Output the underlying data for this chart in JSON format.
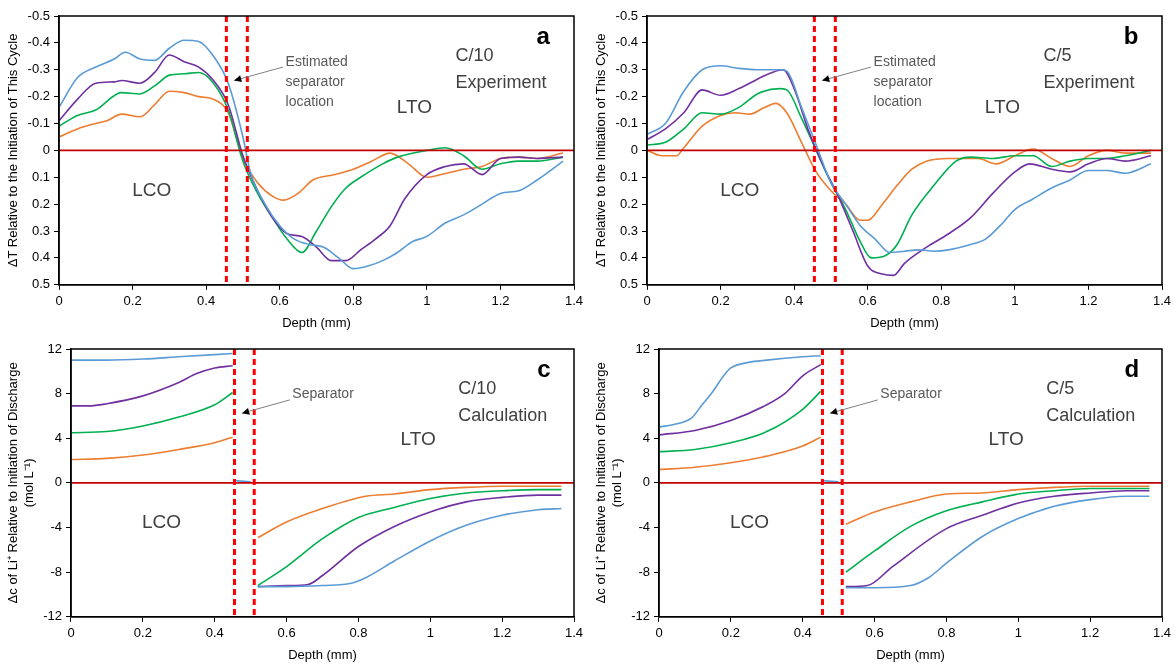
{
  "chart_data": [
    {
      "type": "line",
      "annotations": [
        "a",
        "C/10 Experiment",
        "LTO",
        "LCO",
        "Estimated separator location"
      ],
      "xlabel": "Depth (mm)",
      "ylabel": "ΔT Relative to the Initiation of This Cycle",
      "xlim": [
        0,
        1.4
      ],
      "xticks": [
        0,
        0.2,
        0.4,
        0.6,
        0.8,
        1,
        1.2,
        1.4
      ],
      "ylim": [
        0.5,
        -0.5
      ],
      "yticks": [
        -0.5,
        -0.4,
        -0.3,
        -0.2,
        -0.1,
        0,
        0.1,
        0.2,
        0.3,
        0.4,
        0.5
      ],
      "grid": false,
      "legend": false,
      "marker": "none",
      "ref_lines": [
        {
          "axis": "y",
          "value": 0,
          "color": "#c00000"
        },
        {
          "axis": "x",
          "value": 0.455,
          "color": "#ff0000",
          "line_style": "dashed"
        },
        {
          "axis": "x",
          "value": 0.512,
          "color": "#ff0000",
          "line_style": "dashed"
        }
      ],
      "series": [
        {
          "color": "#5b9bd5",
          "x": [
            0,
            0.05,
            0.1,
            0.15,
            0.18,
            0.22,
            0.26,
            0.3,
            0.34,
            0.38,
            0.42,
            0.46,
            0.5,
            0.52,
            0.56,
            0.6,
            0.64,
            0.68,
            0.72,
            0.76,
            0.8,
            0.84,
            0.88,
            0.92,
            0.96,
            1,
            1.05,
            1.1,
            1.15,
            1.2,
            1.25,
            1.3,
            1.37
          ],
          "values": [
            -0.16,
            -0.27,
            -0.31,
            -0.34,
            -0.365,
            -0.34,
            -0.335,
            -0.38,
            -0.41,
            -0.405,
            -0.35,
            -0.25,
            -0.05,
            0.08,
            0.2,
            0.28,
            0.33,
            0.35,
            0.36,
            0.4,
            0.44,
            0.43,
            0.41,
            0.38,
            0.34,
            0.32,
            0.27,
            0.24,
            0.2,
            0.16,
            0.15,
            0.11,
            0.04
          ]
        },
        {
          "color": "#7030a0",
          "x": [
            0,
            0.05,
            0.1,
            0.15,
            0.17,
            0.22,
            0.26,
            0.3,
            0.34,
            0.38,
            0.42,
            0.46,
            0.5,
            0.54,
            0.58,
            0.62,
            0.66,
            0.7,
            0.74,
            0.78,
            0.82,
            0.86,
            0.9,
            0.94,
            1,
            1.05,
            1.1,
            1.15,
            1.2,
            1.25,
            1.3,
            1.37
          ],
          "values": [
            -0.11,
            -0.19,
            -0.25,
            -0.255,
            -0.26,
            -0.25,
            -0.29,
            -0.355,
            -0.33,
            -0.31,
            -0.26,
            -0.17,
            0.02,
            0.15,
            0.25,
            0.31,
            0.32,
            0.36,
            0.41,
            0.41,
            0.37,
            0.33,
            0.28,
            0.18,
            0.09,
            0.06,
            0.05,
            0.09,
            0.03,
            0.025,
            0.03,
            0.025
          ]
        },
        {
          "color": "#00b050",
          "x": [
            0,
            0.05,
            0.1,
            0.17,
            0.22,
            0.26,
            0.3,
            0.34,
            0.38,
            0.42,
            0.46,
            0.5,
            0.54,
            0.58,
            0.62,
            0.66,
            0.7,
            0.74,
            0.78,
            0.82,
            0.88,
            0.92,
            1,
            1.05,
            1.1,
            1.15,
            1.2,
            1.25,
            1.3,
            1.37
          ],
          "values": [
            -0.09,
            -0.13,
            -0.15,
            -0.215,
            -0.21,
            -0.24,
            -0.28,
            -0.285,
            -0.29,
            -0.25,
            -0.15,
            0.04,
            0.16,
            0.25,
            0.33,
            0.38,
            0.3,
            0.21,
            0.14,
            0.1,
            0.05,
            0.025,
            0,
            -0.01,
            0.02,
            0.07,
            0.05,
            0.04,
            0.04,
            0.025
          ]
        },
        {
          "color": "#ed7d31",
          "x": [
            0,
            0.05,
            0.1,
            0.13,
            0.17,
            0.22,
            0.26,
            0.3,
            0.34,
            0.38,
            0.42,
            0.46,
            0.5,
            0.54,
            0.58,
            0.61,
            0.65,
            0.69,
            0.75,
            0.8,
            0.85,
            0.9,
            0.95,
            1,
            1.04,
            1.1,
            1.15,
            1.2,
            1.25,
            1.3,
            1.37
          ],
          "values": [
            -0.05,
            -0.08,
            -0.1,
            -0.11,
            -0.135,
            -0.125,
            -0.17,
            -0.22,
            -0.215,
            -0.2,
            -0.19,
            -0.14,
            0.03,
            0.12,
            0.17,
            0.185,
            0.16,
            0.11,
            0.09,
            0.07,
            0.04,
            0.01,
            0.05,
            0.1,
            0.09,
            0.07,
            0.06,
            0.03,
            0.025,
            0.03,
            0.01
          ]
        }
      ]
    },
    {
      "type": "line",
      "annotations": [
        "b",
        "C/5 Experiment",
        "LTO",
        "LCO",
        "Estimated separator location"
      ],
      "xlabel": "Depth (mm)",
      "ylabel": "ΔT Relative to the Initiation of This Cycle",
      "xlim": [
        0,
        1.4
      ],
      "xticks": [
        0,
        0.2,
        0.4,
        0.6,
        0.8,
        1,
        1.2,
        1.4
      ],
      "ylim": [
        0.5,
        -0.5
      ],
      "yticks": [
        -0.5,
        -0.4,
        -0.3,
        -0.2,
        -0.1,
        0,
        0.1,
        0.2,
        0.3,
        0.4,
        0.5
      ],
      "grid": false,
      "legend": false,
      "marker": "none",
      "ref_lines": [
        {
          "axis": "y",
          "value": 0,
          "color": "#c00000"
        },
        {
          "axis": "x",
          "value": 0.455,
          "color": "#ff0000",
          "line_style": "dashed"
        },
        {
          "axis": "x",
          "value": 0.512,
          "color": "#ff0000",
          "line_style": "dashed"
        }
      ],
      "series": [
        {
          "color": "#5b9bd5",
          "x": [
            0,
            0.05,
            0.1,
            0.15,
            0.2,
            0.25,
            0.3,
            0.36,
            0.38,
            0.42,
            0.46,
            0.5,
            0.54,
            0.58,
            0.62,
            0.66,
            0.7,
            0.74,
            0.78,
            0.82,
            0.88,
            0.92,
            0.96,
            1,
            1.05,
            1.1,
            1.15,
            1.2,
            1.25,
            1.3,
            1.37
          ],
          "values": [
            -0.06,
            -0.1,
            -0.22,
            -0.3,
            -0.315,
            -0.305,
            -0.3,
            -0.3,
            -0.295,
            -0.16,
            -0.02,
            0.12,
            0.2,
            0.28,
            0.33,
            0.38,
            0.375,
            0.37,
            0.375,
            0.37,
            0.35,
            0.33,
            0.28,
            0.22,
            0.18,
            0.14,
            0.11,
            0.075,
            0.075,
            0.085,
            0.05
          ]
        },
        {
          "color": "#7030a0",
          "x": [
            0,
            0.05,
            0.1,
            0.15,
            0.2,
            0.25,
            0.3,
            0.34,
            0.37,
            0.4,
            0.44,
            0.48,
            0.52,
            0.56,
            0.6,
            0.64,
            0.67,
            0.7,
            0.76,
            0.82,
            0.88,
            0.94,
            1,
            1.04,
            1.1,
            1.15,
            1.2,
            1.25,
            1.3,
            1.37
          ],
          "values": [
            -0.04,
            -0.08,
            -0.14,
            -0.225,
            -0.205,
            -0.23,
            -0.265,
            -0.29,
            -0.3,
            -0.23,
            -0.07,
            0.06,
            0.17,
            0.3,
            0.43,
            0.46,
            0.465,
            0.42,
            0.36,
            0.31,
            0.25,
            0.16,
            0.08,
            0.05,
            0.07,
            0.08,
            0.05,
            0.03,
            0.04,
            0.02
          ]
        },
        {
          "color": "#00b050",
          "x": [
            0,
            0.05,
            0.1,
            0.15,
            0.2,
            0.25,
            0.3,
            0.36,
            0.38,
            0.42,
            0.46,
            0.5,
            0.54,
            0.58,
            0.61,
            0.65,
            0.68,
            0.72,
            0.78,
            0.84,
            0.88,
            0.94,
            1,
            1.05,
            1.1,
            1.15,
            1.2,
            1.25,
            1.3,
            1.37
          ],
          "values": [
            -0.02,
            -0.03,
            -0.08,
            -0.14,
            -0.135,
            -0.16,
            -0.21,
            -0.23,
            -0.225,
            -0.12,
            0,
            0.12,
            0.22,
            0.34,
            0.4,
            0.39,
            0.35,
            0.24,
            0.13,
            0.04,
            0.025,
            0.03,
            0.02,
            0.02,
            0.06,
            0.04,
            0.03,
            0.03,
            0.02,
            0
          ]
        },
        {
          "color": "#ed7d31",
          "x": [
            0,
            0.04,
            0.08,
            0.1,
            0.15,
            0.2,
            0.24,
            0.28,
            0.32,
            0.35,
            0.38,
            0.42,
            0.46,
            0.5,
            0.54,
            0.58,
            0.6,
            0.64,
            0.68,
            0.72,
            0.76,
            0.82,
            0.9,
            0.95,
            1,
            1.05,
            1.1,
            1.15,
            1.2,
            1.25,
            1.3,
            1.37
          ],
          "values": [
            0,
            0.02,
            0.02,
            -0.01,
            -0.09,
            -0.13,
            -0.14,
            -0.135,
            -0.16,
            -0.175,
            -0.14,
            -0.03,
            0.08,
            0.15,
            0.2,
            0.26,
            0.26,
            0.2,
            0.13,
            0.07,
            0.04,
            0.03,
            0.03,
            0.05,
            0.02,
            -0.005,
            0.03,
            0.06,
            0.02,
            0,
            0.01,
            0.01
          ]
        }
      ]
    },
    {
      "type": "line",
      "annotations": [
        "c",
        "C/10 Calculation",
        "LTO",
        "LCO",
        "Separator"
      ],
      "xlabel": "Depth (mm)",
      "ylabel": "Δc of Li⁺ Relative to Initiation of Discharge (mol L⁻¹)",
      "xlim": [
        0,
        1.4
      ],
      "xticks": [
        0,
        0.2,
        0.4,
        0.6,
        0.8,
        1,
        1.2,
        1.4
      ],
      "ylim": [
        -12,
        12
      ],
      "yticks": [
        -12,
        -8,
        -4,
        0,
        4,
        8,
        12
      ],
      "grid": false,
      "legend": false,
      "marker": "none",
      "ref_lines": [
        {
          "axis": "y",
          "value": 0,
          "color": "#c00000"
        },
        {
          "axis": "x",
          "value": 0.455,
          "color": "#ff0000",
          "line_style": "dashed"
        },
        {
          "axis": "x",
          "value": 0.51,
          "color": "#ff0000",
          "line_style": "dashed"
        }
      ],
      "series": [
        {
          "color": "#5b9bd5",
          "x": [
            0,
            0.1,
            0.2,
            0.3,
            0.4,
            0.45,
            0.485,
            0.52,
            0.6,
            0.7,
            0.78,
            0.82,
            0.9,
            1,
            1.1,
            1.2,
            1.3,
            1.365
          ],
          "values": [
            11,
            11,
            11.1,
            11.3,
            11.5,
            11.6,
            null,
            -9.3,
            -9.3,
            -9.2,
            -9,
            -8.5,
            -7,
            -5.2,
            -3.8,
            -2.9,
            -2.4,
            -2.3
          ]
        },
        {
          "color": "#7030a0",
          "x": [
            0,
            0.05,
            0.1,
            0.2,
            0.3,
            0.35,
            0.4,
            0.45,
            0.485,
            0.52,
            0.6,
            0.66,
            0.7,
            0.8,
            0.9,
            1,
            1.1,
            1.2,
            1.3,
            1.365
          ],
          "values": [
            6.9,
            6.9,
            7.1,
            7.8,
            9,
            9.8,
            10.3,
            10.5,
            null,
            -9.3,
            -9.2,
            -9.1,
            -8.3,
            -5.7,
            -3.9,
            -2.6,
            -1.7,
            -1.3,
            -1.1,
            -1.1
          ]
        },
        {
          "color": "#00b050",
          "x": [
            0,
            0.1,
            0.2,
            0.3,
            0.4,
            0.45,
            0.485,
            0.52,
            0.6,
            0.7,
            0.8,
            0.9,
            1,
            1.1,
            1.2,
            1.3,
            1.365
          ],
          "values": [
            4.5,
            4.6,
            5.1,
            5.9,
            7,
            8.1,
            null,
            -9.2,
            -7.5,
            -5,
            -3.1,
            -2.2,
            -1.4,
            -0.9,
            -0.7,
            -0.6,
            -0.6
          ]
        },
        {
          "color": "#ed7d31",
          "x": [
            0,
            0.1,
            0.2,
            0.3,
            0.4,
            0.45,
            0.485,
            0.52,
            0.6,
            0.7,
            0.82,
            0.9,
            1,
            1.1,
            1.2,
            1.365
          ],
          "values": [
            2.1,
            2.2,
            2.5,
            3,
            3.6,
            4.1,
            null,
            -4.9,
            -3.5,
            -2.3,
            -1.2,
            -1,
            -0.6,
            -0.4,
            -0.3,
            -0.3
          ]
        },
        {
          "color": "#5b9bd5",
          "x": [
            0.455,
            0.5
          ],
          "values": [
            0.2,
            0.1
          ]
        }
      ]
    },
    {
      "type": "line",
      "annotations": [
        "d",
        "C/5 Calculation",
        "LTO",
        "LCO",
        "Separator"
      ],
      "xlabel": "Depth (mm)",
      "ylabel": "Δc of Li⁺ Relative to Initiation of Discharge (mol L⁻¹)",
      "xlim": [
        0,
        1.4
      ],
      "xticks": [
        0,
        0.2,
        0.4,
        0.6,
        0.8,
        1,
        1.2,
        1.4
      ],
      "ylim": [
        -12,
        12
      ],
      "yticks": [
        -12,
        -8,
        -4,
        0,
        4,
        8,
        12
      ],
      "grid": false,
      "legend": false,
      "marker": "none",
      "ref_lines": [
        {
          "axis": "y",
          "value": 0,
          "color": "#c00000"
        },
        {
          "axis": "x",
          "value": 0.455,
          "color": "#ff0000",
          "line_style": "dashed"
        },
        {
          "axis": "x",
          "value": 0.51,
          "color": "#ff0000",
          "line_style": "dashed"
        }
      ],
      "series": [
        {
          "color": "#5b9bd5",
          "x": [
            0,
            0.05,
            0.09,
            0.12,
            0.15,
            0.18,
            0.2,
            0.25,
            0.3,
            0.4,
            0.45,
            0.485,
            0.52,
            0.6,
            0.7,
            0.75,
            0.8,
            0.9,
            1,
            1.1,
            1.2,
            1.3,
            1.365
          ],
          "values": [
            5,
            5.3,
            5.8,
            7,
            8.2,
            9.6,
            10.3,
            10.8,
            11,
            11.3,
            11.4,
            null,
            -9.4,
            -9.4,
            -9.2,
            -8.5,
            -7.2,
            -4.8,
            -3.2,
            -2.1,
            -1.5,
            -1.2,
            -1.2
          ]
        },
        {
          "color": "#7030a0",
          "x": [
            0,
            0.1,
            0.2,
            0.3,
            0.35,
            0.4,
            0.45,
            0.485,
            0.52,
            0.58,
            0.65,
            0.8,
            0.9,
            1,
            1.1,
            1.2,
            1.3,
            1.365
          ],
          "values": [
            4.3,
            4.7,
            5.6,
            7,
            8,
            9.6,
            10.6,
            null,
            -9.3,
            -9.2,
            -7.5,
            -4.1,
            -2.9,
            -1.8,
            -1.2,
            -0.9,
            -0.7,
            -0.7
          ]
        },
        {
          "color": "#00b050",
          "x": [
            0,
            0.1,
            0.2,
            0.3,
            0.4,
            0.45,
            0.485,
            0.52,
            0.6,
            0.7,
            0.8,
            0.9,
            1,
            1.1,
            1.2,
            1.365
          ],
          "values": [
            2.8,
            3,
            3.6,
            4.6,
            6.6,
            8.2,
            null,
            -8,
            -6.1,
            -3.9,
            -2.5,
            -1.7,
            -1,
            -0.7,
            -0.5,
            -0.5
          ]
        },
        {
          "color": "#ed7d31",
          "x": [
            0,
            0.1,
            0.2,
            0.3,
            0.4,
            0.45,
            0.485,
            0.52,
            0.6,
            0.7,
            0.8,
            0.9,
            1,
            1.1,
            1.2,
            1.365
          ],
          "values": [
            1.2,
            1.4,
            1.8,
            2.4,
            3.3,
            4.1,
            null,
            -3.7,
            -2.6,
            -1.7,
            -1,
            -0.9,
            -0.6,
            -0.4,
            -0.3,
            -0.3
          ]
        },
        {
          "color": "#5b9bd5",
          "x": [
            0.455,
            0.5
          ],
          "values": [
            0.2,
            0.1
          ]
        }
      ]
    }
  ]
}
